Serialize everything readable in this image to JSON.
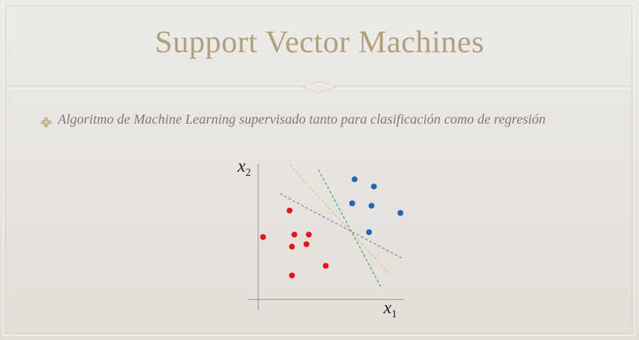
{
  "slide": {
    "title": "Support Vector Machines",
    "bullet": "Algoritmo de Machine Learning supervisado tanto para clasificación como de regresión"
  },
  "diagram": {
    "x_axis_label": {
      "letter": "x",
      "subscript": "1"
    },
    "y_axis_label": {
      "letter": "x",
      "subscript": "2"
    },
    "red_class": {
      "color": "#e8141c",
      "points": [
        [
          13,
          37
        ],
        [
          2,
          26
        ],
        [
          15,
          27
        ],
        [
          21,
          27
        ],
        [
          14,
          22
        ],
        [
          20,
          23
        ],
        [
          14,
          10
        ],
        [
          28,
          14
        ]
      ]
    },
    "blue_class": {
      "color": "#1f68b5",
      "points": [
        [
          40,
          50
        ],
        [
          48,
          47
        ],
        [
          39,
          40
        ],
        [
          47,
          39
        ],
        [
          59,
          36
        ],
        [
          46,
          28
        ]
      ]
    },
    "separators": [
      {
        "color": "#e0c27a",
        "from": [
          13,
          56
        ],
        "to": [
          54,
          11
        ]
      },
      {
        "color": "#3aa574",
        "from": [
          25,
          54
        ],
        "to": [
          51,
          5
        ]
      },
      {
        "color": "#8d78b6",
        "from": [
          9,
          44
        ],
        "to": [
          60,
          17
        ]
      }
    ],
    "colors": {
      "title": "#b0a07d",
      "bullet_text": "#7d7a75",
      "axis": "#8a8a8a"
    }
  }
}
